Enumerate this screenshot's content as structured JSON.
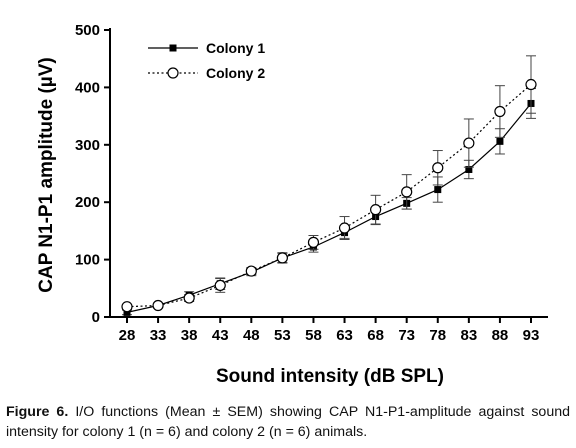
{
  "chart_data": {
    "type": "line",
    "title": "",
    "xlabel": "Sound intensity (dB SPL)",
    "ylabel": "CAP N1-P1 amplitude (µV)",
    "x": [
      28,
      33,
      38,
      43,
      48,
      53,
      58,
      63,
      68,
      73,
      78,
      83,
      88,
      93
    ],
    "xticks": [
      "28",
      "33",
      "38",
      "43",
      "48",
      "53",
      "58",
      "63",
      "68",
      "73",
      "78",
      "83",
      "88",
      "93"
    ],
    "yticks": [
      "0",
      "100",
      "200",
      "300",
      "400",
      "500"
    ],
    "ylim": [
      0,
      500
    ],
    "grid": false,
    "legend_position": "top-left",
    "series": [
      {
        "name": "Colony 1",
        "marker": "filled-square",
        "line_style": "solid",
        "color": "#000000",
        "values": [
          8,
          20,
          38,
          58,
          78,
          103,
          122,
          147,
          175,
          198,
          222,
          257,
          306,
          372
        ],
        "errors": [
          4,
          4,
          6,
          10,
          6,
          9,
          9,
          10,
          14,
          10,
          22,
          16,
          22,
          26
        ]
      },
      {
        "name": "Colony 2",
        "marker": "open-circle",
        "line_style": "dotted",
        "color": "#000000",
        "values": [
          18,
          20,
          33,
          55,
          80,
          103,
          130,
          155,
          187,
          218,
          260,
          303,
          358,
          405
        ],
        "errors": [
          4,
          4,
          6,
          12,
          6,
          8,
          12,
          20,
          25,
          30,
          30,
          42,
          45,
          50
        ]
      }
    ]
  },
  "caption": {
    "label": "Figure 6.",
    "text": " I/O functions (Mean ± SEM) showing CAP N1-P1-amplitude against sound intensity for colony 1 (n = 6) and colony 2 (n = 6) animals."
  }
}
